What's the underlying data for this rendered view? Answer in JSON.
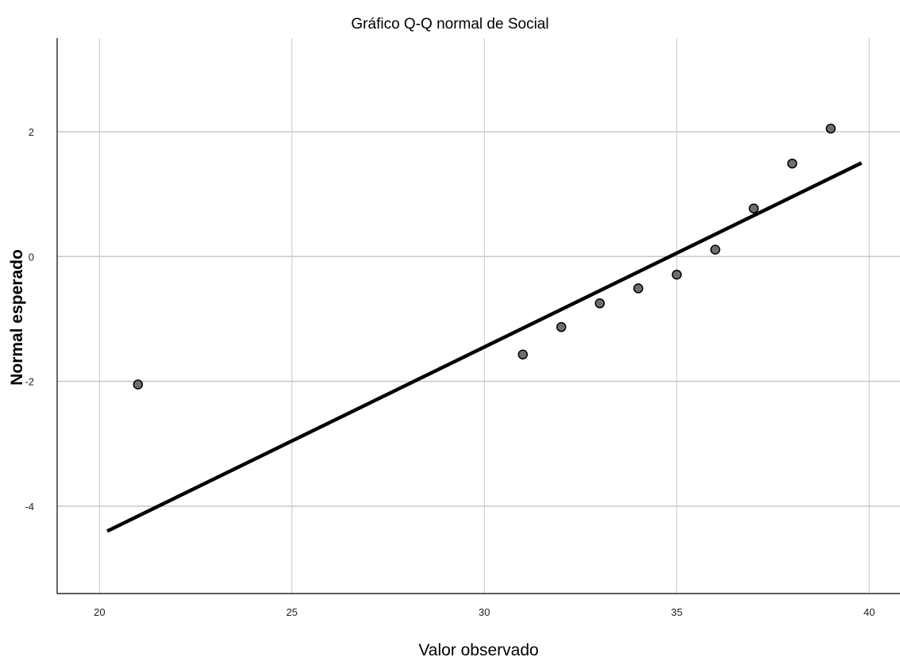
{
  "chart_data": {
    "type": "scatter",
    "title": "Gráfico Q-Q normal de Social",
    "xlabel": "Valor observado",
    "ylabel": "Normal esperado",
    "xlim": [
      18.9,
      40.8
    ],
    "ylim": [
      -5.4,
      3.5
    ],
    "xticks": [
      20,
      25,
      30,
      35,
      40
    ],
    "yticks": [
      -4,
      -2,
      0,
      2
    ],
    "xtick_labels": [
      "20",
      "25",
      "30",
      "35",
      "40"
    ],
    "ytick_labels": [
      "-4",
      "-2",
      "0",
      "2"
    ],
    "grid": true,
    "points": [
      {
        "x": 21,
        "y": -2.05
      },
      {
        "x": 31,
        "y": -1.57
      },
      {
        "x": 32,
        "y": -1.13
      },
      {
        "x": 33,
        "y": -0.75
      },
      {
        "x": 34,
        "y": -0.51
      },
      {
        "x": 35,
        "y": -0.29
      },
      {
        "x": 36,
        "y": 0.11
      },
      {
        "x": 37,
        "y": 0.77
      },
      {
        "x": 38,
        "y": 1.49
      },
      {
        "x": 39,
        "y": 2.05
      }
    ],
    "reference_line": {
      "x": [
        20.2,
        39.8
      ],
      "y": [
        -4.4,
        1.5
      ]
    },
    "colors": {
      "point_fill": "#6e6e6e",
      "point_stroke": "#000000",
      "line": "#000000",
      "grid": "#c8c8c8"
    }
  }
}
